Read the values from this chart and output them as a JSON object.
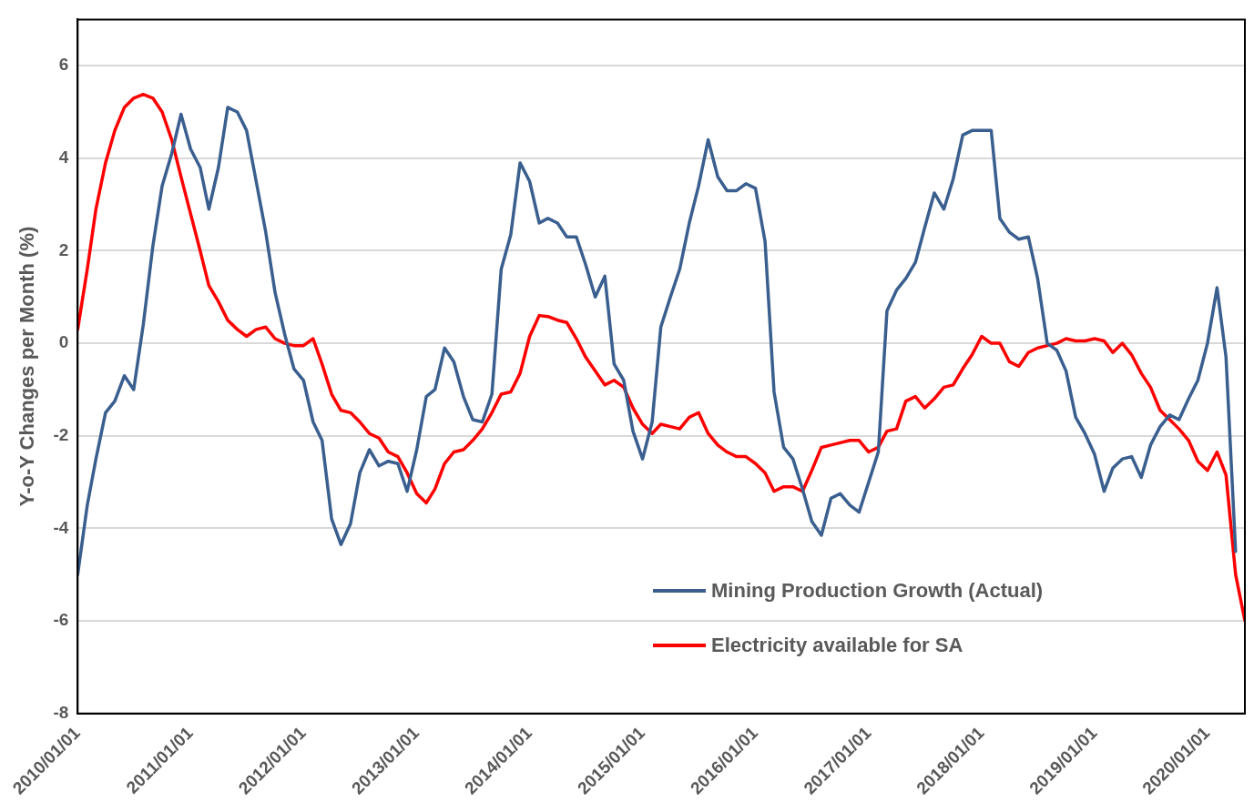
{
  "chart_data": {
    "type": "line",
    "ylabel": "Y-o-Y Changes per Month (%)",
    "x": [
      "2010-01",
      "2010-02",
      "2010-03",
      "2010-04",
      "2010-05",
      "2010-06",
      "2010-07",
      "2010-08",
      "2010-09",
      "2010-10",
      "2010-11",
      "2010-12",
      "2011-01",
      "2011-02",
      "2011-03",
      "2011-04",
      "2011-05",
      "2011-06",
      "2011-07",
      "2011-08",
      "2011-09",
      "2011-10",
      "2011-11",
      "2011-12",
      "2012-01",
      "2012-02",
      "2012-03",
      "2012-04",
      "2012-05",
      "2012-06",
      "2012-07",
      "2012-08",
      "2012-09",
      "2012-10",
      "2012-11",
      "2012-12",
      "2013-01",
      "2013-02",
      "2013-03",
      "2013-04",
      "2013-05",
      "2013-06",
      "2013-07",
      "2013-08",
      "2013-09",
      "2013-10",
      "2013-11",
      "2013-12",
      "2014-01",
      "2014-02",
      "2014-03",
      "2014-04",
      "2014-05",
      "2014-06",
      "2014-07",
      "2014-08",
      "2014-09",
      "2014-10",
      "2014-11",
      "2014-12",
      "2015-01",
      "2015-02",
      "2015-03",
      "2015-04",
      "2015-05",
      "2015-06",
      "2015-07",
      "2015-08",
      "2015-09",
      "2015-10",
      "2015-11",
      "2015-12",
      "2016-01",
      "2016-02",
      "2016-03",
      "2016-04",
      "2016-05",
      "2016-06",
      "2016-07",
      "2016-08",
      "2016-09",
      "2016-10",
      "2016-11",
      "2016-12",
      "2017-01",
      "2017-02",
      "2017-03",
      "2017-04",
      "2017-05",
      "2017-06",
      "2017-07",
      "2017-08",
      "2017-09",
      "2017-10",
      "2017-11",
      "2017-12",
      "2018-01",
      "2018-02",
      "2018-03",
      "2018-04",
      "2018-05",
      "2018-06",
      "2018-07",
      "2018-08",
      "2018-09",
      "2018-10",
      "2018-11",
      "2018-12",
      "2019-01",
      "2019-02",
      "2019-03",
      "2019-04",
      "2019-05",
      "2019-06",
      "2019-07",
      "2019-08",
      "2019-09",
      "2019-10",
      "2019-11",
      "2019-12",
      "2020-01",
      "2020-02",
      "2020-03",
      "2020-04",
      "2020-05"
    ],
    "series": [
      {
        "name": "Mining Production Growth (Actual)",
        "color": "#3a5f8f",
        "values": [
          -5.0,
          -3.5,
          -2.5,
          -1.5,
          -1.25,
          -0.7,
          -1.0,
          0.4,
          2.1,
          3.4,
          4.1,
          4.95,
          4.2,
          3.8,
          2.9,
          3.8,
          5.1,
          5.0,
          4.6,
          3.5,
          2.4,
          1.1,
          0.2,
          -0.55,
          -0.8,
          -1.7,
          -2.1,
          -3.8,
          -4.35,
          -3.9,
          -2.8,
          -2.3,
          -2.65,
          -2.55,
          -2.6,
          -3.2,
          -2.3,
          -1.15,
          -1.0,
          -0.1,
          -0.4,
          -1.15,
          -1.65,
          -1.7,
          -1.1,
          1.6,
          2.35,
          3.9,
          3.5,
          2.6,
          2.7,
          2.6,
          2.3,
          2.3,
          1.7,
          1.0,
          1.45,
          -0.45,
          -0.8,
          -1.9,
          -2.5,
          -1.7,
          0.35,
          1.0,
          1.6,
          2.6,
          3.4,
          4.4,
          3.6,
          3.3,
          3.3,
          3.45,
          3.35,
          2.2,
          -1.05,
          -2.25,
          -2.5,
          -3.15,
          -3.85,
          -4.15,
          -3.35,
          -3.25,
          -3.5,
          -3.65,
          -3.0,
          -2.35,
          0.7,
          1.15,
          1.4,
          1.75,
          2.5,
          3.25,
          2.9,
          3.55,
          4.5,
          4.6,
          4.6,
          4.6,
          2.7,
          2.4,
          2.25,
          2.3,
          1.4,
          0.0,
          -0.15,
          -0.6,
          -1.6,
          -1.95,
          -2.4,
          -3.2,
          -2.7,
          -2.5,
          -2.45,
          -2.9,
          -2.2,
          -1.8,
          -1.55,
          -1.65,
          -1.2,
          -0.8,
          0.0,
          1.2,
          -0.3,
          -4.5,
          null
        ]
      },
      {
        "name": "Electricity available for SA",
        "color": "#ff0000",
        "values": [
          0.3,
          1.6,
          2.9,
          3.9,
          4.6,
          5.1,
          5.3,
          5.38,
          5.3,
          5.0,
          4.4,
          3.6,
          2.8,
          2.0,
          1.25,
          0.9,
          0.5,
          0.3,
          0.15,
          0.3,
          0.35,
          0.1,
          0.0,
          -0.05,
          -0.05,
          0.1,
          -0.45,
          -1.1,
          -1.45,
          -1.5,
          -1.7,
          -1.95,
          -2.05,
          -2.35,
          -2.45,
          -2.8,
          -3.25,
          -3.45,
          -3.15,
          -2.6,
          -2.35,
          -2.3,
          -2.1,
          -1.85,
          -1.5,
          -1.1,
          -1.05,
          -0.65,
          0.15,
          0.6,
          0.58,
          0.5,
          0.45,
          0.1,
          -0.3,
          -0.6,
          -0.9,
          -0.8,
          -0.95,
          -1.4,
          -1.75,
          -1.95,
          -1.75,
          -1.8,
          -1.85,
          -1.6,
          -1.5,
          -1.95,
          -2.2,
          -2.35,
          -2.45,
          -2.45,
          -2.6,
          -2.8,
          -3.2,
          -3.1,
          -3.1,
          -3.2,
          -2.75,
          -2.25,
          -2.2,
          -2.15,
          -2.1,
          -2.1,
          -2.35,
          -2.25,
          -1.9,
          -1.85,
          -1.25,
          -1.15,
          -1.4,
          -1.2,
          -0.95,
          -0.9,
          -0.55,
          -0.25,
          0.15,
          0.0,
          0.0,
          -0.4,
          -0.5,
          -0.2,
          -0.1,
          -0.05,
          0.0,
          0.1,
          0.05,
          0.05,
          0.1,
          0.05,
          -0.2,
          0.0,
          -0.25,
          -0.65,
          -0.95,
          -1.45,
          -1.65,
          -1.85,
          -2.1,
          -2.55,
          -2.75,
          -2.35,
          -2.85,
          -5.0,
          -6.0
        ]
      }
    ],
    "xlim": [
      "2010-01",
      "2020-05"
    ],
    "xticks": [
      {
        "value": "2010-01-01",
        "label": "2010/01/01"
      },
      {
        "value": "2011-01-01",
        "label": "2011/01/01"
      },
      {
        "value": "2012-01-01",
        "label": "2012/01/01"
      },
      {
        "value": "2013-01-01",
        "label": "2013/01/01"
      },
      {
        "value": "2014-01-01",
        "label": "2014/01/01"
      },
      {
        "value": "2015-01-01",
        "label": "2015/01/01"
      },
      {
        "value": "2016-01-01",
        "label": "2016/01/01"
      },
      {
        "value": "2017-01-01",
        "label": "2017/01/01"
      },
      {
        "value": "2018-01-01",
        "label": "2018/01/01"
      },
      {
        "value": "2019-01-01",
        "label": "2019/01/01"
      },
      {
        "value": "2020-01-01",
        "label": "2020/01/01"
      }
    ],
    "ylim": [
      -8,
      7
    ],
    "yticks": [
      -8,
      -6,
      -4,
      -2,
      0,
      2,
      4,
      6
    ],
    "grid": "y",
    "legend": "bottom right",
    "marker": "none",
    "line_style": "solid"
  }
}
